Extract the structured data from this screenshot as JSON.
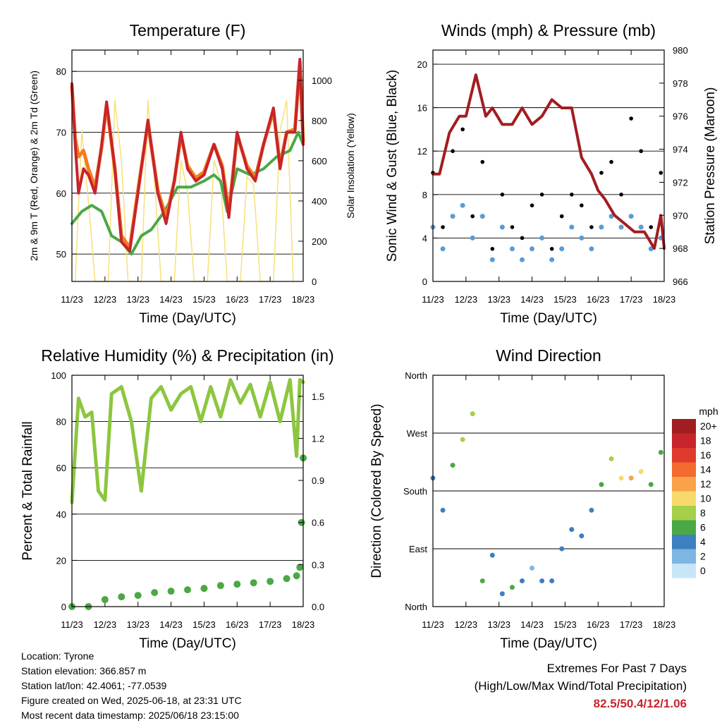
{
  "chart_data": [
    {
      "type": "line",
      "title": "Temperature (F)",
      "xlabel": "Time (Day/UTC)",
      "ylabel": "2m & 9m T (Red, Orange) & 2m Td (Green)",
      "y2label": "Solar Insolation (Yellow)",
      "x_ticks": [
        "11/23",
        "12/23",
        "13/23",
        "14/23",
        "15/23",
        "16/23",
        "17/23",
        "18/23"
      ],
      "ylim": [
        45.5,
        83.5
      ],
      "y_ticks": [
        50,
        60,
        70,
        80
      ],
      "y2lim": [
        0,
        1150
      ],
      "y2_ticks": [
        0,
        200,
        400,
        600,
        800,
        1000
      ],
      "grid": true,
      "series": [
        {
          "name": "2m T",
          "color": "#c8242b",
          "x": [
            0,
            0.1,
            0.2,
            0.35,
            0.5,
            0.7,
            0.9,
            1.05,
            1.3,
            1.5,
            1.75,
            2.0,
            2.3,
            2.6,
            2.85,
            3.1,
            3.3,
            3.5,
            3.75,
            4.0,
            4.3,
            4.55,
            4.75,
            5.0,
            5.3,
            5.55,
            5.8,
            6.1,
            6.3,
            6.5,
            6.75,
            6.9,
            7.0
          ],
          "values": [
            78,
            68,
            60,
            64,
            63,
            60,
            68,
            75,
            64,
            52,
            50.5,
            60,
            72,
            60,
            55,
            62,
            70,
            64,
            62,
            63,
            68,
            64,
            56,
            70,
            64,
            62,
            68,
            74,
            64,
            70,
            70,
            82,
            68
          ]
        },
        {
          "name": "9m T",
          "color": "#f57c1e",
          "x": [
            0,
            0.1,
            0.2,
            0.35,
            0.5,
            0.7,
            0.9,
            1.05,
            1.3,
            1.5,
            1.75,
            2.0,
            2.3,
            2.6,
            2.85,
            3.1,
            3.3,
            3.5,
            3.75,
            4.0,
            4.3,
            4.55,
            4.75,
            5.0,
            5.3,
            5.55,
            5.8,
            6.1,
            6.3,
            6.5,
            6.75,
            6.9,
            7.0
          ],
          "values": [
            77.5,
            69,
            66,
            67,
            64,
            61,
            67.5,
            74.5,
            64,
            53,
            51,
            60.5,
            71.5,
            60.5,
            56,
            62,
            69.5,
            64.5,
            62.5,
            63.5,
            68,
            64.5,
            57,
            69.5,
            64.5,
            62.5,
            68,
            73.5,
            64.5,
            70,
            70.5,
            81.5,
            68.5
          ]
        },
        {
          "name": "2m Td",
          "color": "#4aa845",
          "x": [
            0,
            0.3,
            0.6,
            0.9,
            1.2,
            1.5,
            1.8,
            2.1,
            2.4,
            2.8,
            3.2,
            3.6,
            4.0,
            4.3,
            4.5,
            4.7,
            5.0,
            5.4,
            5.8,
            6.2,
            6.6,
            6.85,
            7.0
          ],
          "values": [
            55,
            57,
            58,
            57,
            53,
            52,
            50,
            53,
            54,
            57,
            61,
            61,
            62,
            63,
            62,
            57,
            64,
            63,
            64,
            66,
            67,
            70,
            68
          ]
        },
        {
          "name": "Solar",
          "color": "#f7e07a",
          "axis": "y2",
          "x": [
            0.1,
            0.3,
            0.5,
            0.7,
            1.1,
            1.3,
            1.5,
            1.7,
            2.1,
            2.3,
            2.5,
            2.7,
            3.1,
            3.3,
            3.5,
            3.7,
            4.1,
            4.3,
            4.5,
            4.7,
            5.1,
            5.3,
            5.5,
            5.7,
            6.1,
            6.3,
            6.5,
            6.7
          ],
          "values": [
            0,
            750,
            400,
            0,
            0,
            900,
            600,
            0,
            0,
            900,
            500,
            0,
            0,
            600,
            450,
            0,
            0,
            600,
            500,
            0,
            0,
            520,
            480,
            0,
            0,
            750,
            900,
            0
          ]
        }
      ]
    },
    {
      "type": "scatter",
      "title": "Winds (mph) & Pressure (mb)",
      "xlabel": "Time (Day/UTC)",
      "ylabel": "Sonic Wind & Gust (Blue, Black)",
      "y2label": "Station Pressure (Maroon)",
      "x_ticks": [
        "11/23",
        "12/23",
        "13/23",
        "14/23",
        "15/23",
        "16/23",
        "17/23",
        "18/23"
      ],
      "ylim": [
        0,
        21.3
      ],
      "y_ticks": [
        0,
        4,
        8,
        12,
        16,
        20
      ],
      "y2lim": [
        966,
        980
      ],
      "y2_ticks": [
        966,
        968,
        970,
        972,
        974,
        976,
        978,
        980
      ],
      "grid": true,
      "series": [
        {
          "name": "Sonic Wind",
          "color": "#5b9bd5",
          "x": [
            0,
            0.3,
            0.6,
            0.9,
            1.2,
            1.5,
            1.8,
            2.1,
            2.4,
            2.7,
            3.0,
            3.3,
            3.6,
            3.9,
            4.2,
            4.5,
            4.8,
            5.1,
            5.4,
            5.7,
            6.0,
            6.3,
            6.6,
            6.9
          ],
          "values": [
            5,
            3,
            6,
            7,
            4,
            6,
            2,
            5,
            3,
            2,
            3,
            4,
            2,
            3,
            5,
            4,
            3,
            5,
            6,
            5,
            6,
            5,
            3,
            4
          ]
        },
        {
          "name": "Gust",
          "color": "#000000",
          "x": [
            0,
            0.3,
            0.6,
            0.9,
            1.2,
            1.5,
            1.8,
            2.1,
            2.4,
            2.7,
            3.0,
            3.3,
            3.6,
            3.9,
            4.2,
            4.5,
            4.8,
            5.1,
            5.4,
            5.7,
            6.0,
            6.3,
            6.6,
            6.9
          ],
          "values": [
            10,
            5,
            12,
            14,
            6,
            11,
            3,
            8,
            5,
            4,
            7,
            8,
            3,
            6,
            8,
            7,
            5,
            10,
            11,
            8,
            15,
            12,
            5,
            10
          ]
        },
        {
          "name": "Station Pressure",
          "color": "#a11d21",
          "axis": "y2",
          "x": [
            0,
            0.2,
            0.5,
            0.8,
            1.0,
            1.3,
            1.6,
            1.8,
            2.1,
            2.4,
            2.7,
            3.0,
            3.3,
            3.6,
            3.9,
            4.2,
            4.5,
            4.8,
            5.0,
            5.2,
            5.5,
            5.8,
            6.1,
            6.4,
            6.7,
            6.9,
            7.0
          ],
          "values": [
            972.5,
            972.5,
            975,
            976,
            976,
            978.5,
            976,
            976.5,
            975.5,
            975.5,
            976.5,
            975.5,
            976,
            977,
            976.5,
            976.5,
            973.5,
            972.5,
            971.5,
            971,
            970,
            969.5,
            969,
            969,
            968,
            970,
            968
          ]
        }
      ]
    },
    {
      "type": "line",
      "title": "Relative Humidity (%) & Precipitation (in)",
      "xlabel": "Time (Day/UTC)",
      "ylabel": "Percent & Total Rainfall",
      "x_ticks": [
        "11/23",
        "12/23",
        "13/23",
        "14/23",
        "15/23",
        "16/23",
        "17/23",
        "18/23"
      ],
      "ylim": [
        0,
        100
      ],
      "y_ticks": [
        0,
        20,
        40,
        60,
        80,
        100
      ],
      "y2lim": [
        0,
        1.65
      ],
      "y2_ticks": [
        "0.0",
        "0.3",
        "0.6",
        "0.9",
        "1.2",
        "1.5"
      ],
      "grid": true,
      "series": [
        {
          "name": "Relative Humidity",
          "color": "#8cc63f",
          "x": [
            0,
            0.2,
            0.4,
            0.6,
            0.8,
            1.0,
            1.2,
            1.5,
            1.8,
            2.1,
            2.4,
            2.7,
            3.0,
            3.3,
            3.6,
            3.9,
            4.2,
            4.5,
            4.8,
            5.1,
            5.4,
            5.7,
            6.0,
            6.3,
            6.6,
            6.8,
            6.9,
            7.0
          ],
          "values": [
            45,
            90,
            82,
            84,
            50,
            46,
            92,
            95,
            80,
            50,
            90,
            95,
            85,
            92,
            95,
            80,
            95,
            82,
            98,
            88,
            96,
            82,
            97,
            80,
            98,
            65,
            98,
            97
          ]
        },
        {
          "name": "Total Precipitation",
          "color": "#4aa845",
          "axis": "y2",
          "x": [
            0,
            0.5,
            1.0,
            1.5,
            2.0,
            2.5,
            3.0,
            3.5,
            4.0,
            4.5,
            5.0,
            5.5,
            6.0,
            6.5,
            6.8,
            6.9,
            6.95,
            7.0
          ],
          "values": [
            0,
            0,
            0.05,
            0.07,
            0.08,
            0.1,
            0.11,
            0.12,
            0.13,
            0.15,
            0.16,
            0.17,
            0.18,
            0.2,
            0.22,
            0.28,
            0.6,
            1.06
          ]
        }
      ]
    },
    {
      "type": "scatter",
      "title": "Wind Direction",
      "xlabel": "Time (Day/UTC)",
      "ylabel": "Direction (Colored By Speed)",
      "x_ticks": [
        "11/23",
        "12/23",
        "13/23",
        "14/23",
        "15/23",
        "16/23",
        "17/23",
        "18/23"
      ],
      "y_ticks": [
        "North",
        "East",
        "South",
        "West",
        "North"
      ],
      "ylim": [
        0,
        360
      ],
      "grid": true,
      "colorbar_title": "mph",
      "colorbar_labels": [
        "20+",
        "18",
        "16",
        "14",
        "12",
        "10",
        "8",
        "6",
        "4",
        "2",
        "0"
      ],
      "colorbar_colors": [
        "#a11d21",
        "#c8242b",
        "#e03a2e",
        "#f26a2e",
        "#f8a24a",
        "#f8da6c",
        "#a6cf4a",
        "#4aa845",
        "#3d7fbf",
        "#7db6e2",
        "#c8e6f7"
      ],
      "x": [
        0,
        0.3,
        0.6,
        0.9,
        1.2,
        1.5,
        1.8,
        2.1,
        2.4,
        2.7,
        3.0,
        3.3,
        3.6,
        3.9,
        4.2,
        4.5,
        4.8,
        5.1,
        5.4,
        5.7,
        6.0,
        6.3,
        6.6,
        6.9
      ],
      "values": [
        200,
        150,
        220,
        260,
        300,
        40,
        80,
        20,
        30,
        40,
        60,
        40,
        40,
        90,
        120,
        110,
        150,
        190,
        230,
        200,
        200,
        210,
        190,
        240
      ],
      "speeds": [
        4,
        3,
        6,
        7,
        8,
        5,
        3,
        4,
        6,
        3,
        2,
        3,
        4,
        3,
        4,
        3,
        4,
        6,
        8,
        9,
        11,
        9,
        5,
        6
      ]
    }
  ],
  "footer": {
    "location": "Location: Tyrone",
    "elevation": "Station elevation: 366.857 m",
    "latlon": "Station lat/lon: 42.4061; -77.0539",
    "created": "Figure created on Wed, 2025-06-18, at 23:31 UTC",
    "recent": "Most recent data timestamp: 2025/06/18 23:15:00"
  },
  "extremes": {
    "title": "Extremes For Past 7 Days",
    "subtitle": "(High/Low/Max Wind/Total Precipitation)",
    "values": "82.5/50.4/12/1.06"
  }
}
